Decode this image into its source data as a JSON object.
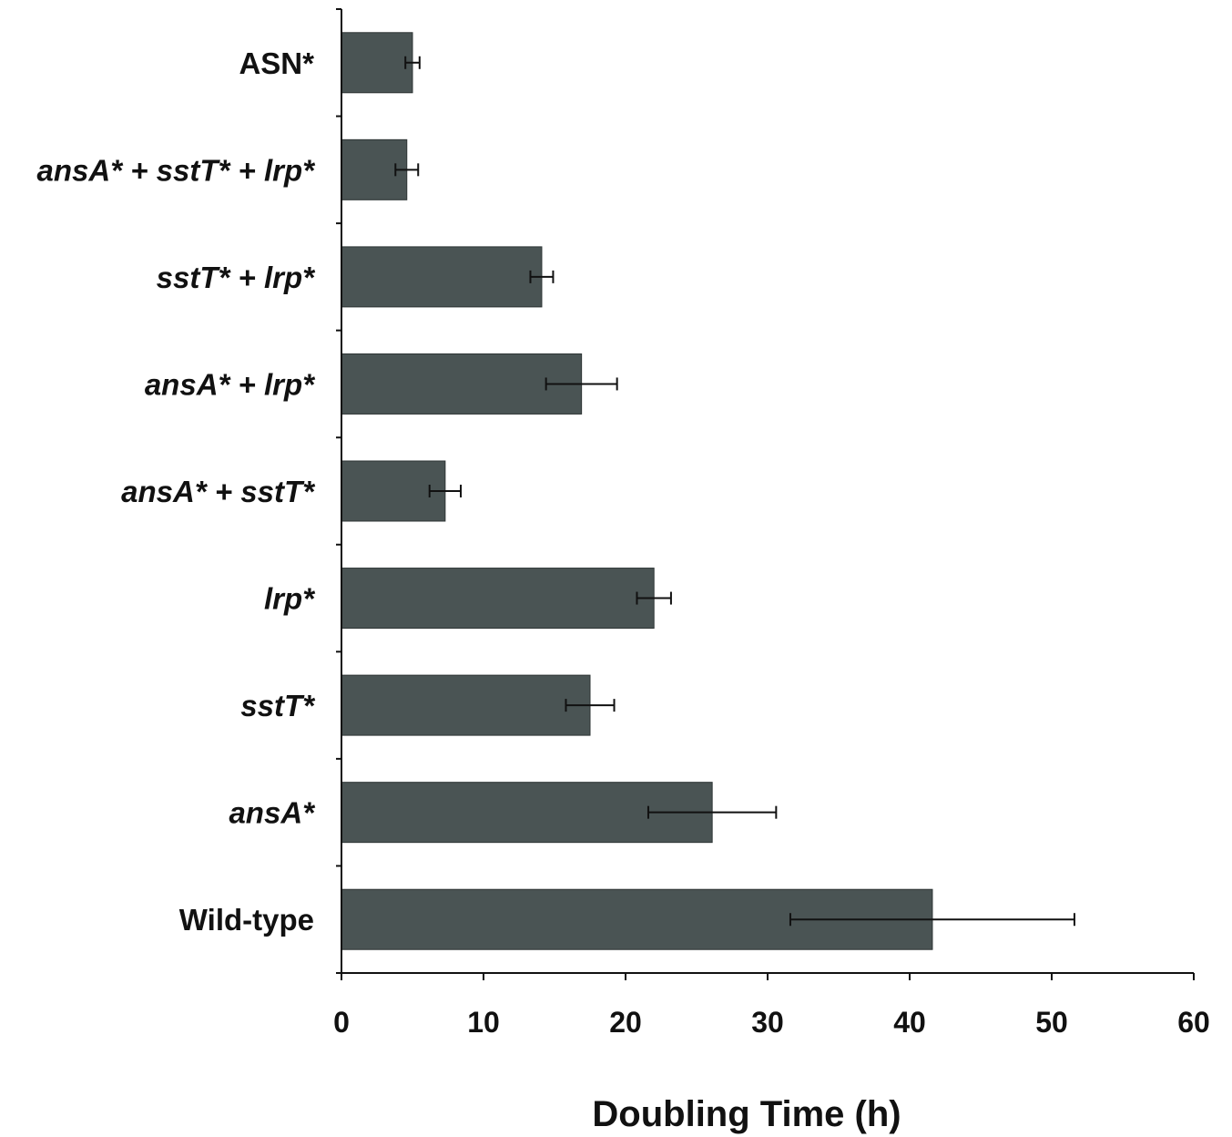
{
  "chart_data": {
    "type": "bar",
    "orientation": "horizontal",
    "title": "",
    "xlabel": "Doubling Time (h)",
    "ylabel": "",
    "xlim": [
      0,
      60
    ],
    "xticks": [
      0,
      10,
      20,
      30,
      40,
      50,
      60
    ],
    "grid": false,
    "categories": [
      {
        "label": "ASN*",
        "italic": false
      },
      {
        "label": "ansA* + sstT* + lrp*",
        "italic": true
      },
      {
        "label": "sstT* + lrp*",
        "italic": true
      },
      {
        "label": "ansA* + lrp*",
        "italic": true
      },
      {
        "label": "ansA* + sstT*",
        "italic": true
      },
      {
        "label": "lrp*",
        "italic": true
      },
      {
        "label": "sstT*",
        "italic": true
      },
      {
        "label": "ansA*",
        "italic": true
      },
      {
        "label": "Wild-type",
        "italic": false
      }
    ],
    "values": [
      5.0,
      4.6,
      14.1,
      16.9,
      7.3,
      22.0,
      17.5,
      26.1,
      41.6
    ],
    "errors": [
      0.5,
      0.8,
      0.8,
      2.5,
      1.1,
      1.2,
      1.7,
      4.5,
      10.0
    ],
    "bar_color": "#4a5454"
  }
}
